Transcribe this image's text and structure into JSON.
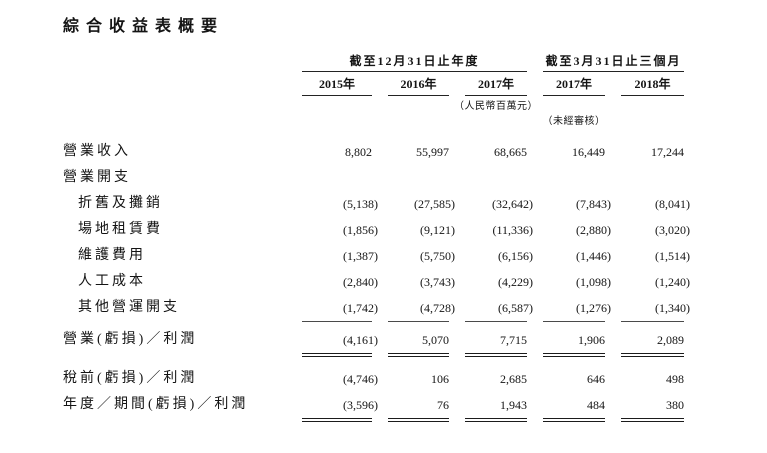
{
  "page": {
    "title": "綜合收益表概要"
  },
  "table": {
    "col_groups": [
      {
        "label": "截至12月31日止年度"
      },
      {
        "label": "截至3月31日止三個月"
      }
    ],
    "col_headers": [
      "2015年",
      "2016年",
      "2017年",
      "2017年",
      "2018年"
    ],
    "unit_note": "（人民幣百萬元）",
    "unaudited_note": "（未經審核）",
    "rows": [
      {
        "label": "營業收入",
        "indent": 0,
        "rule": "none",
        "spacer_before": 0,
        "values": [
          "8,802",
          "55,997",
          "68,665",
          "16,449",
          "17,244"
        ]
      },
      {
        "label": "營業開支",
        "indent": 0,
        "rule": "none",
        "spacer_before": 0,
        "values": [
          "",
          "",
          "",
          "",
          ""
        ]
      },
      {
        "label": "折舊及攤銷",
        "indent": 1,
        "rule": "none",
        "spacer_before": 0,
        "values": [
          "(5,138)",
          "(27,585)",
          "(32,642)",
          "(7,843)",
          "(8,041)"
        ]
      },
      {
        "label": "場地租賃費",
        "indent": 1,
        "rule": "none",
        "spacer_before": 0,
        "values": [
          "(1,856)",
          "(9,121)",
          "(11,336)",
          "(2,880)",
          "(3,020)"
        ]
      },
      {
        "label": "維護費用",
        "indent": 1,
        "rule": "none",
        "spacer_before": 0,
        "values": [
          "(1,387)",
          "(5,750)",
          "(6,156)",
          "(1,446)",
          "(1,514)"
        ]
      },
      {
        "label": "人工成本",
        "indent": 1,
        "rule": "none",
        "spacer_before": 0,
        "values": [
          "(2,840)",
          "(3,743)",
          "(4,229)",
          "(1,098)",
          "(1,240)"
        ]
      },
      {
        "label": "其他營運開支",
        "indent": 1,
        "rule": "single",
        "spacer_before": 0,
        "values": [
          "(1,742)",
          "(4,728)",
          "(6,587)",
          "(1,276)",
          "(1,340)"
        ]
      },
      {
        "label": "營業(虧損)／利潤",
        "indent": 0,
        "rule": "double",
        "spacer_before": 6,
        "values": [
          "(4,161)",
          "5,070",
          "7,715",
          "1,906",
          "2,089"
        ]
      },
      {
        "label": "稅前(虧損)／利潤",
        "indent": 0,
        "rule": "none",
        "spacer_before": 13,
        "values": [
          "(4,746)",
          "106",
          "2,685",
          "646",
          "498"
        ]
      },
      {
        "label": "年度／期間(虧損)／利潤",
        "indent": 0,
        "rule": "double",
        "spacer_before": 0,
        "values": [
          "(3,596)",
          "76",
          "1,943",
          "484",
          "380"
        ]
      }
    ]
  }
}
